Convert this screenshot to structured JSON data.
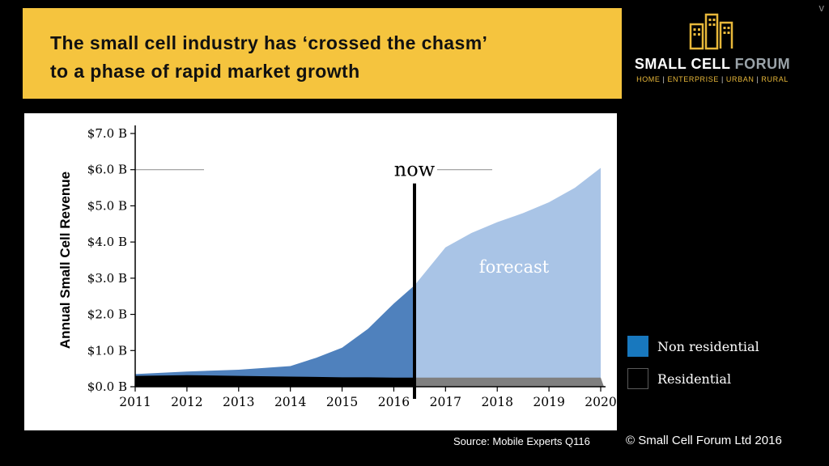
{
  "slide": {
    "title_line1": "The small cell industry has ‘crossed the chasm’",
    "title_line2": "to a phase of rapid market growth",
    "corner_mark": "v"
  },
  "logo": {
    "brand_primary": "SMALL CELL",
    "brand_secondary": "FORUM",
    "separator": "|",
    "tagline": [
      "HOME",
      "ENTERPRISE",
      "URBAN",
      "RURAL"
    ]
  },
  "legend": {
    "items": [
      {
        "label": "Non residential",
        "color": "#1878be"
      },
      {
        "label": "Residential",
        "color": "#000000"
      }
    ]
  },
  "footer": {
    "source": "Source: Mobile Experts Q116",
    "copyright": "© Small Cell Forum Ltd 2016"
  },
  "colors": {
    "banner_yellow": "#f5c43e",
    "logo_yellow": "#e8b83a",
    "hist_blue": "#4f81bd",
    "forecast_blue": "#a9c4e6",
    "residential_gray": "#7f7f7f"
  },
  "chart_data": {
    "type": "area",
    "title": "",
    "ylabel": "Annual Small Cell Revenue",
    "xlabel": "",
    "ylim": [
      0,
      7
    ],
    "ytick_labels": [
      "$0.0 B",
      "$1.0 B",
      "$2.0 B",
      "$3.0 B",
      "$4.0 B",
      "$5.0 B",
      "$6.0 B",
      "$7.0 B"
    ],
    "x_years": [
      2011,
      2012,
      2013,
      2014,
      2015,
      2016,
      2017,
      2018,
      2019,
      2020
    ],
    "x": [
      2011,
      2012,
      2013,
      2014,
      2014.5,
      2015,
      2015.5,
      2016,
      2016.4,
      2017,
      2017.5,
      2018,
      2018.5,
      2019,
      2019.5,
      2020
    ],
    "now_x": 2016.4,
    "now_label": "now",
    "forecast_label": "forecast",
    "grid": false,
    "legend_position": "right-outside",
    "series": [
      {
        "name": "Residential",
        "color": "#000000",
        "forecast_color": "#7f7f7f",
        "values": [
          0.3,
          0.32,
          0.3,
          0.28,
          0.27,
          0.26,
          0.26,
          0.25,
          0.25,
          0.25,
          0.25,
          0.25,
          0.25,
          0.25,
          0.25,
          0.25
        ]
      },
      {
        "name": "Non residential",
        "color": "#4f81bd",
        "forecast_color": "#a9c4e6",
        "values": [
          0.05,
          0.1,
          0.17,
          0.29,
          0.53,
          0.82,
          1.34,
          2.05,
          2.55,
          3.6,
          4.0,
          4.3,
          4.55,
          4.85,
          5.25,
          5.8
        ]
      }
    ]
  }
}
